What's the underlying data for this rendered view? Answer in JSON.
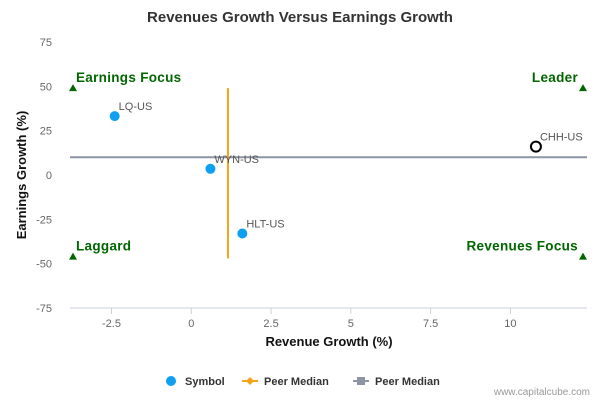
{
  "chart_data": {
    "type": "scatter",
    "title": "Revenues Growth Versus Earnings Growth",
    "xlabel": "Revenue Growth (%)",
    "ylabel": "Earnings Growth (%)",
    "xlim": [
      -3.8,
      12.4
    ],
    "ylim": [
      -75,
      75
    ],
    "x_ticks": [
      -2.5,
      0,
      2.5,
      5,
      7.5,
      10
    ],
    "x_tick_labels": [
      "-2.5",
      "0",
      "2.5",
      "5",
      "7.5",
      "10"
    ],
    "y_ticks": [
      75,
      50,
      25,
      0,
      -25,
      -50,
      -75
    ],
    "y_tick_labels": [
      "75",
      "50",
      "25",
      "0",
      "-25",
      "-50",
      "-75"
    ],
    "grid": false,
    "points": [
      {
        "label": "LQ-US",
        "x": -2.4,
        "y": 33.2,
        "style": "filled"
      },
      {
        "label": "WYN-US",
        "x": 0.6,
        "y": 3.5,
        "style": "filled"
      },
      {
        "label": "HLT-US",
        "x": 1.6,
        "y": -33.0,
        "style": "filled"
      },
      {
        "label": "CHH-US",
        "x": 10.8,
        "y": 16.0,
        "style": "open"
      }
    ],
    "peer_median_revenue": {
      "x": 1.15,
      "y_range": [
        -47,
        49
      ]
    },
    "peer_median_earnings": {
      "y": 10,
      "x_range": [
        -3.8,
        12.4
      ]
    },
    "quadrants": [
      {
        "label": "Earnings Focus",
        "position": "top-left"
      },
      {
        "label": "Leader",
        "position": "top-right"
      },
      {
        "label": "Laggard",
        "position": "bottom-left"
      },
      {
        "label": "Revenues Focus",
        "position": "bottom-right"
      }
    ],
    "legend": {
      "placement": "bottom",
      "items": [
        {
          "label": "Symbol",
          "marker": "circle",
          "color": "#0e9ff0"
        },
        {
          "label": "Peer Median",
          "marker": "line-diamond",
          "color": "#f5a31a"
        },
        {
          "label": "Peer Median",
          "marker": "line-square",
          "color": "#8c94a6"
        }
      ]
    },
    "colors": {
      "point": "#0e9ff0",
      "open_point_stroke": "#000000",
      "revenue_median_line": "#f5a31a",
      "earnings_median_line": "#8c94a6",
      "quadrant_label": "#006600",
      "axis": "#c8d2dc"
    }
  },
  "credit": "www.capitalcube.com"
}
